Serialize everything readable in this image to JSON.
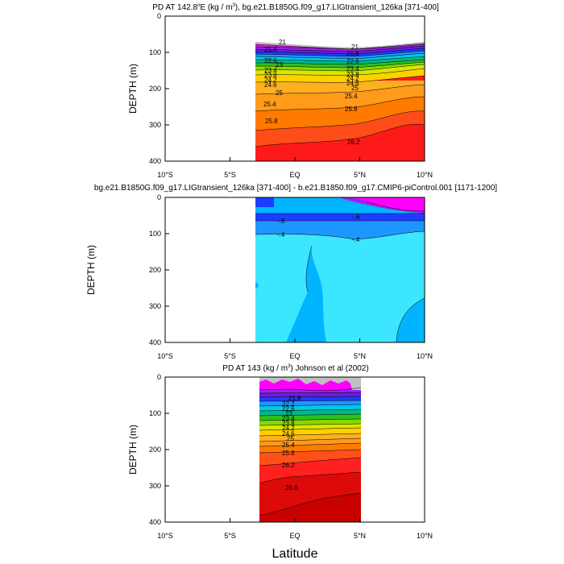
{
  "figure": {
    "xlabel": "Latitude"
  },
  "chart_data": [
    {
      "type": "contour",
      "title_main": "PD AT 142.8",
      "title_sup": "o",
      "title_unit_pre": "E (kg / m",
      "title_unit_sup": "3",
      "title_rest": "), bg.e21.B1850G.f09_g17.LIGtransient_126ka [371-400]",
      "ylabel": "DEPTH (m)",
      "xlim": [
        -10,
        10
      ],
      "ylim": [
        0,
        400
      ],
      "data_x_range": [
        -3,
        10
      ],
      "xticks": [
        -10,
        -5,
        0,
        5,
        10
      ],
      "xtick_labels": [
        "10°S",
        "5°S",
        "EQ",
        "5°N",
        "10°N"
      ],
      "yticks": [
        0,
        100,
        200,
        300,
        400
      ],
      "ytick_labels": [
        "0",
        "100",
        "200",
        "300",
        "400"
      ],
      "contour_levels": [
        21,
        21.4,
        21.8,
        22.2,
        22.6,
        23,
        23.4,
        23.8,
        24.2,
        24.6,
        25,
        25.4,
        25.8,
        26.2
      ],
      "level_depths_at_eq": [
        75,
        85,
        92,
        98,
        104,
        112,
        122,
        134,
        150,
        172,
        200,
        235,
        285,
        345
      ],
      "contour_labels": [
        {
          "text": "21",
          "lat": -1.3,
          "depth": 70
        },
        {
          "text": "21.4",
          "lat": -2.0,
          "depth": 83
        },
        {
          "text": "22.6",
          "lat": -2.0,
          "depth": 120
        },
        {
          "text": "23",
          "lat": -1.5,
          "depth": 130
        },
        {
          "text": "23.4",
          "lat": -2.0,
          "depth": 145
        },
        {
          "text": "23.8",
          "lat": -2.0,
          "depth": 158
        },
        {
          "text": "24.2",
          "lat": -2.0,
          "depth": 172
        },
        {
          "text": "24.6",
          "lat": -2.0,
          "depth": 188
        },
        {
          "text": "25",
          "lat": -1.0,
          "depth": 210
        },
        {
          "text": "25.4",
          "lat": -2.0,
          "depth": 240
        },
        {
          "text": "25.8",
          "lat": -1.7,
          "depth": 290
        },
        {
          "text": "21",
          "lat": 4.9,
          "depth": 82
        },
        {
          "text": "21.8",
          "lat": 5.0,
          "depth": 92
        },
        {
          "text": "22.6",
          "lat": 4.9,
          "depth": 125
        },
        {
          "text": "23.4",
          "lat": 4.9,
          "depth": 145
        },
        {
          "text": "23.8",
          "lat": 4.9,
          "depth": 160
        },
        {
          "text": "24.2",
          "lat": 4.9,
          "depth": 175
        },
        {
          "text": "24.6",
          "lat": 4.9,
          "depth": 190
        },
        {
          "text": "25",
          "lat": 5.0,
          "depth": 200
        },
        {
          "text": "25.4",
          "lat": 4.9,
          "depth": 222
        },
        {
          "text": "25.8",
          "lat": 4.8,
          "depth": 255
        },
        {
          "text": "26.2",
          "lat": 4.8,
          "depth": 348
        }
      ]
    },
    {
      "type": "contour",
      "title_main": "bg.e21.B1850G.f09_g17.LIGtransient_126ka [371-400] - b.e21.B1850.f09_g17.CMIP6-piControl.001 [1171-1200]",
      "ylabel": "DEPTH (m)",
      "xlim": [
        -10,
        10
      ],
      "ylim": [
        0,
        400
      ],
      "data_x_range": [
        -3,
        10
      ],
      "xticks": [
        -10,
        -5,
        0,
        5,
        10
      ],
      "xtick_labels": [
        "10°S",
        "5°S",
        "EQ",
        "5°N",
        "10°N"
      ],
      "yticks": [
        0,
        100,
        200,
        300,
        400
      ],
      "ytick_labels": [
        "0",
        "100",
        "200",
        "300",
        "400"
      ],
      "contour_labels": [
        {
          "text": "-.6",
          "lat": -1.2,
          "depth": 60
        },
        {
          "text": "-.6",
          "lat": 4.8,
          "depth": 55
        },
        {
          "text": "-.4",
          "lat": -1.2,
          "depth": 103
        },
        {
          "text": "-.4",
          "lat": 4.8,
          "depth": 118
        }
      ]
    },
    {
      "type": "contour",
      "title_main": "PD AT 143 (kg / m",
      "title_sup": "3",
      "title_rest": ") Johnson et al (2002)",
      "ylabel": "DEPTH (m)",
      "xlim": [
        -10,
        10
      ],
      "ylim": [
        0,
        400
      ],
      "data_x_range": [
        -2.3,
        5
      ],
      "xticks": [
        -10,
        -5,
        0,
        5,
        10
      ],
      "xtick_labels": [
        "10°S",
        "5°S",
        "EQ",
        "5°N",
        "10°N"
      ],
      "yticks": [
        0,
        100,
        200,
        300,
        400
      ],
      "ytick_labels": [
        "0",
        "100",
        "200",
        "300",
        "400"
      ],
      "contour_labels": [
        {
          "text": "21.8",
          "lat": -0.3,
          "depth": 60
        },
        {
          "text": "22.2",
          "lat": -0.5,
          "depth": 75
        },
        {
          "text": "22.6",
          "lat": -0.5,
          "depth": 88
        },
        {
          "text": "23",
          "lat": -0.5,
          "depth": 100
        },
        {
          "text": "23.4",
          "lat": -0.5,
          "depth": 112
        },
        {
          "text": "23.8",
          "lat": -0.5,
          "depth": 128
        },
        {
          "text": "24.2",
          "lat": -0.5,
          "depth": 142
        },
        {
          "text": "24.6",
          "lat": -0.5,
          "depth": 158
        },
        {
          "text": "25",
          "lat": -0.3,
          "depth": 172
        },
        {
          "text": "25.4",
          "lat": -0.5,
          "depth": 188
        },
        {
          "text": "25.8",
          "lat": -0.5,
          "depth": 210
        },
        {
          "text": "26.2",
          "lat": -0.5,
          "depth": 240
        },
        {
          "text": "26.6",
          "lat": -1.0,
          "depth": 305
        }
      ]
    }
  ]
}
